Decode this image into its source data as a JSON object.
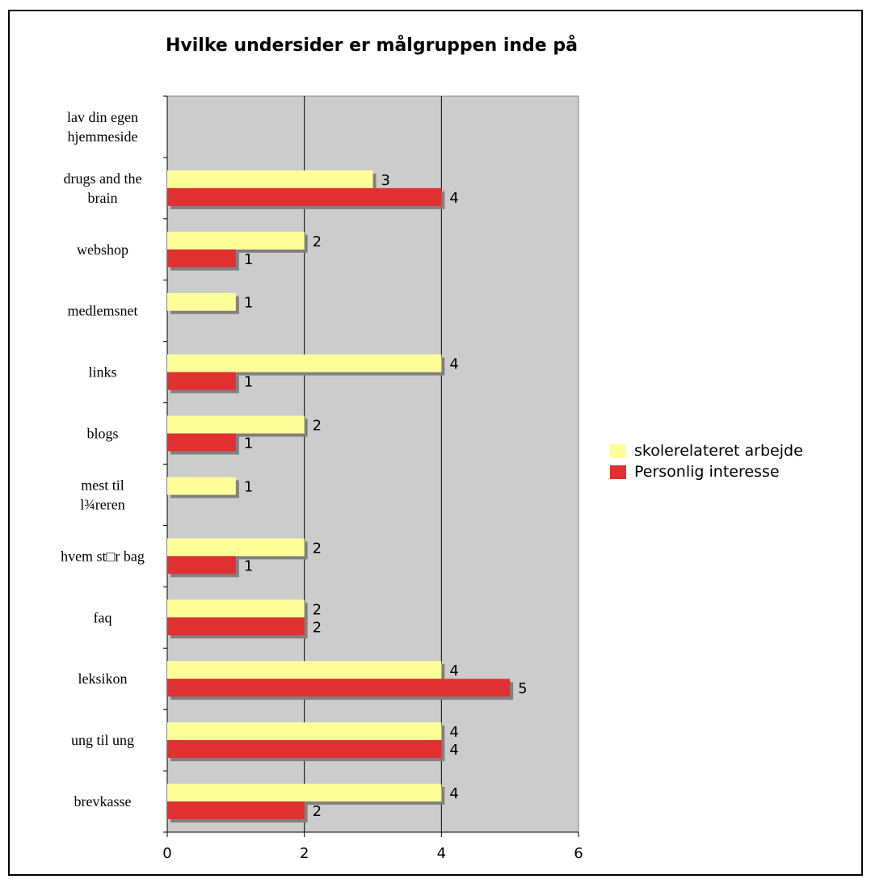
{
  "chart_data": {
    "type": "bar",
    "orientation": "horizontal",
    "title": "Hvilke undersider er målgruppen inde på",
    "xlabel": "",
    "ylabel": "",
    "xlim": [
      0,
      6
    ],
    "xticks": [
      "0",
      "2",
      "4",
      "6"
    ],
    "grid": true,
    "legend_position": "right",
    "categories": [
      "lav din egen hjemmeside",
      "drugs and the brain",
      "webshop",
      "medlemsnet",
      "links",
      "blogs",
      "mest til l¾reren",
      "hvem st□r bag",
      "faq",
      "leksikon",
      "ung til ung",
      "brevkasse"
    ],
    "series": [
      {
        "name": "skolerelateret arbejde",
        "color": "#ffff99",
        "values": [
          null,
          3,
          2,
          1,
          4,
          2,
          1,
          2,
          2,
          4,
          4,
          4
        ]
      },
      {
        "name": "Personlig interesse",
        "color": "#e03030",
        "values": [
          null,
          4,
          1,
          null,
          1,
          1,
          null,
          1,
          2,
          5,
          4,
          2
        ]
      }
    ],
    "plot_background": "#cccccc"
  }
}
